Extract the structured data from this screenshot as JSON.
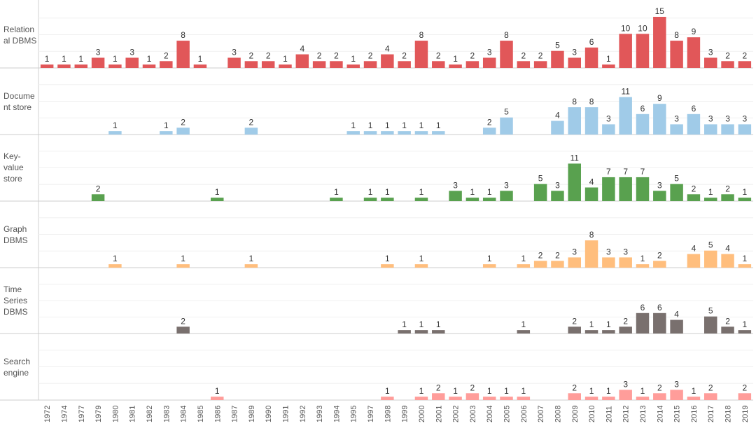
{
  "chart_data": {
    "type": "bar",
    "title": "",
    "xlabel": "",
    "ylabel": "",
    "ylim": [
      0,
      15
    ],
    "categories": [
      "1972",
      "1974",
      "1977",
      "1979",
      "1980",
      "1981",
      "1982",
      "1983",
      "1984",
      "1985",
      "1986",
      "1987",
      "1989",
      "1990",
      "1991",
      "1992",
      "1993",
      "1994",
      "1995",
      "1997",
      "1998",
      "1999",
      "2000",
      "2001",
      "2002",
      "2003",
      "2004",
      "2005",
      "2006",
      "2007",
      "2008",
      "2009",
      "2010",
      "2011",
      "2012",
      "2013",
      "2014",
      "2015",
      "2016",
      "2017",
      "2018",
      "2019"
    ],
    "series": [
      {
        "name": "Relation al DBMS",
        "label_lines": [
          "Relation",
          "al DBMS"
        ],
        "color": "#e15759",
        "values": [
          1,
          1,
          1,
          3,
          1,
          3,
          1,
          2,
          8,
          1,
          null,
          3,
          2,
          2,
          1,
          4,
          2,
          2,
          1,
          2,
          4,
          2,
          8,
          2,
          1,
          2,
          3,
          8,
          2,
          2,
          5,
          3,
          6,
          1,
          10,
          10,
          15,
          8,
          9,
          3,
          2,
          2
        ]
      },
      {
        "name": "Document store",
        "label_lines": [
          "Docume",
          "nt store"
        ],
        "color": "#a0cbe8",
        "values": [
          null,
          null,
          null,
          null,
          1,
          null,
          null,
          1,
          2,
          null,
          null,
          null,
          2,
          null,
          null,
          null,
          null,
          null,
          1,
          1,
          1,
          1,
          1,
          1,
          null,
          null,
          2,
          5,
          null,
          null,
          4,
          8,
          8,
          3,
          11,
          6,
          9,
          3,
          6,
          3,
          3,
          3
        ]
      },
      {
        "name": "Key-value store",
        "label_lines": [
          "Key-",
          "value",
          "store"
        ],
        "color": "#59a14f",
        "values": [
          null,
          null,
          null,
          2,
          null,
          null,
          null,
          null,
          null,
          null,
          1,
          null,
          null,
          null,
          null,
          null,
          null,
          1,
          null,
          1,
          1,
          null,
          1,
          null,
          3,
          1,
          1,
          3,
          null,
          5,
          3,
          11,
          4,
          7,
          7,
          7,
          3,
          5,
          2,
          1,
          2,
          1
        ]
      },
      {
        "name": "Graph DBMS",
        "label_lines": [
          "Graph",
          "DBMS"
        ],
        "color": "#ffbe7d",
        "values": [
          null,
          null,
          null,
          null,
          1,
          null,
          null,
          null,
          1,
          null,
          null,
          null,
          1,
          null,
          null,
          null,
          null,
          null,
          null,
          null,
          1,
          null,
          1,
          null,
          null,
          null,
          1,
          null,
          1,
          2,
          2,
          3,
          8,
          3,
          3,
          1,
          2,
          null,
          4,
          5,
          4,
          1
        ]
      },
      {
        "name": "Time Series DBMS",
        "label_lines": [
          "Time",
          "Series",
          "DBMS"
        ],
        "color": "#79706e",
        "values": [
          null,
          null,
          null,
          null,
          null,
          null,
          null,
          null,
          2,
          null,
          null,
          null,
          null,
          null,
          null,
          null,
          null,
          null,
          null,
          null,
          null,
          1,
          1,
          1,
          null,
          null,
          null,
          null,
          1,
          null,
          null,
          2,
          1,
          1,
          2,
          6,
          6,
          4,
          null,
          5,
          2,
          1
        ]
      },
      {
        "name": "Search engine",
        "label_lines": [
          "Search",
          "engine"
        ],
        "color": "#ff9d9a",
        "values": [
          null,
          null,
          null,
          null,
          null,
          null,
          null,
          null,
          null,
          null,
          1,
          null,
          null,
          null,
          null,
          null,
          null,
          null,
          null,
          null,
          1,
          null,
          1,
          2,
          1,
          2,
          1,
          1,
          1,
          null,
          null,
          2,
          1,
          1,
          3,
          1,
          2,
          3,
          1,
          2,
          null,
          2
        ]
      }
    ]
  }
}
